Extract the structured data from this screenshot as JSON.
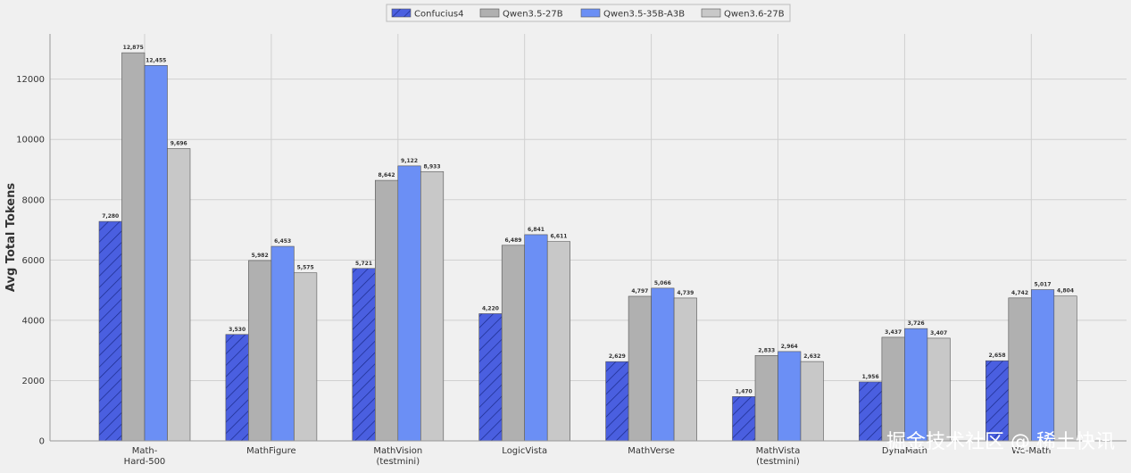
{
  "chart_data": {
    "type": "bar",
    "categories": [
      "Math-\nHard-500",
      "MathFigure",
      "MathVision\n(testmini)",
      "LogicVista",
      "MathVerse",
      "MathVista\n(testmini)",
      "DynaMath",
      "We-Math"
    ],
    "series": [
      {
        "name": "Confucius4",
        "values": [
          7280,
          3530,
          5721,
          4220,
          2629,
          1470,
          1956,
          2658
        ],
        "color": "#4a5fe0",
        "hatch": true
      },
      {
        "name": "Qwen3.5-27B",
        "values": [
          12875,
          5982,
          8642,
          6489,
          4797,
          2833,
          3437,
          4742
        ],
        "color": "#b0b0b0",
        "hatch": false
      },
      {
        "name": "Qwen3.5-35B-A3B",
        "values": [
          12455,
          6453,
          9122,
          6841,
          5066,
          2964,
          3726,
          5017
        ],
        "color": "#6b8ff5",
        "hatch": false
      },
      {
        "name": "Qwen3.6-27B",
        "values": [
          9696,
          5575,
          8933,
          6611,
          4739,
          2632,
          3407,
          4804
        ],
        "color": "#c8c8c8",
        "hatch": false
      }
    ],
    "data_labels": [
      [
        "7,280",
        "3,530",
        "5,721",
        "4,220",
        "2,629",
        "1,470",
        "1,956",
        "2,658"
      ],
      [
        "12,875",
        "5,982",
        "8,642",
        "6,489",
        "4,797",
        "2,833",
        "3,437",
        "4,742"
      ],
      [
        "12,455",
        "6,453",
        "9,122",
        "6,841",
        "5,066",
        "2,964",
        "3,726",
        "5,017"
      ],
      [
        "9,696",
        "5,575",
        "8,933",
        "6,611",
        "4,739",
        "2,632",
        "3,407",
        "4,804"
      ]
    ],
    "ylabel": "Avg Total Tokens",
    "xlabel": "",
    "ylim": [
      0,
      13500
    ],
    "yticks": [
      0,
      2000,
      4000,
      6000,
      8000,
      10000,
      12000
    ],
    "grid": true,
    "legend_position": "top-center"
  },
  "watermark": "掘金技术社区 @ 稀土快讯"
}
